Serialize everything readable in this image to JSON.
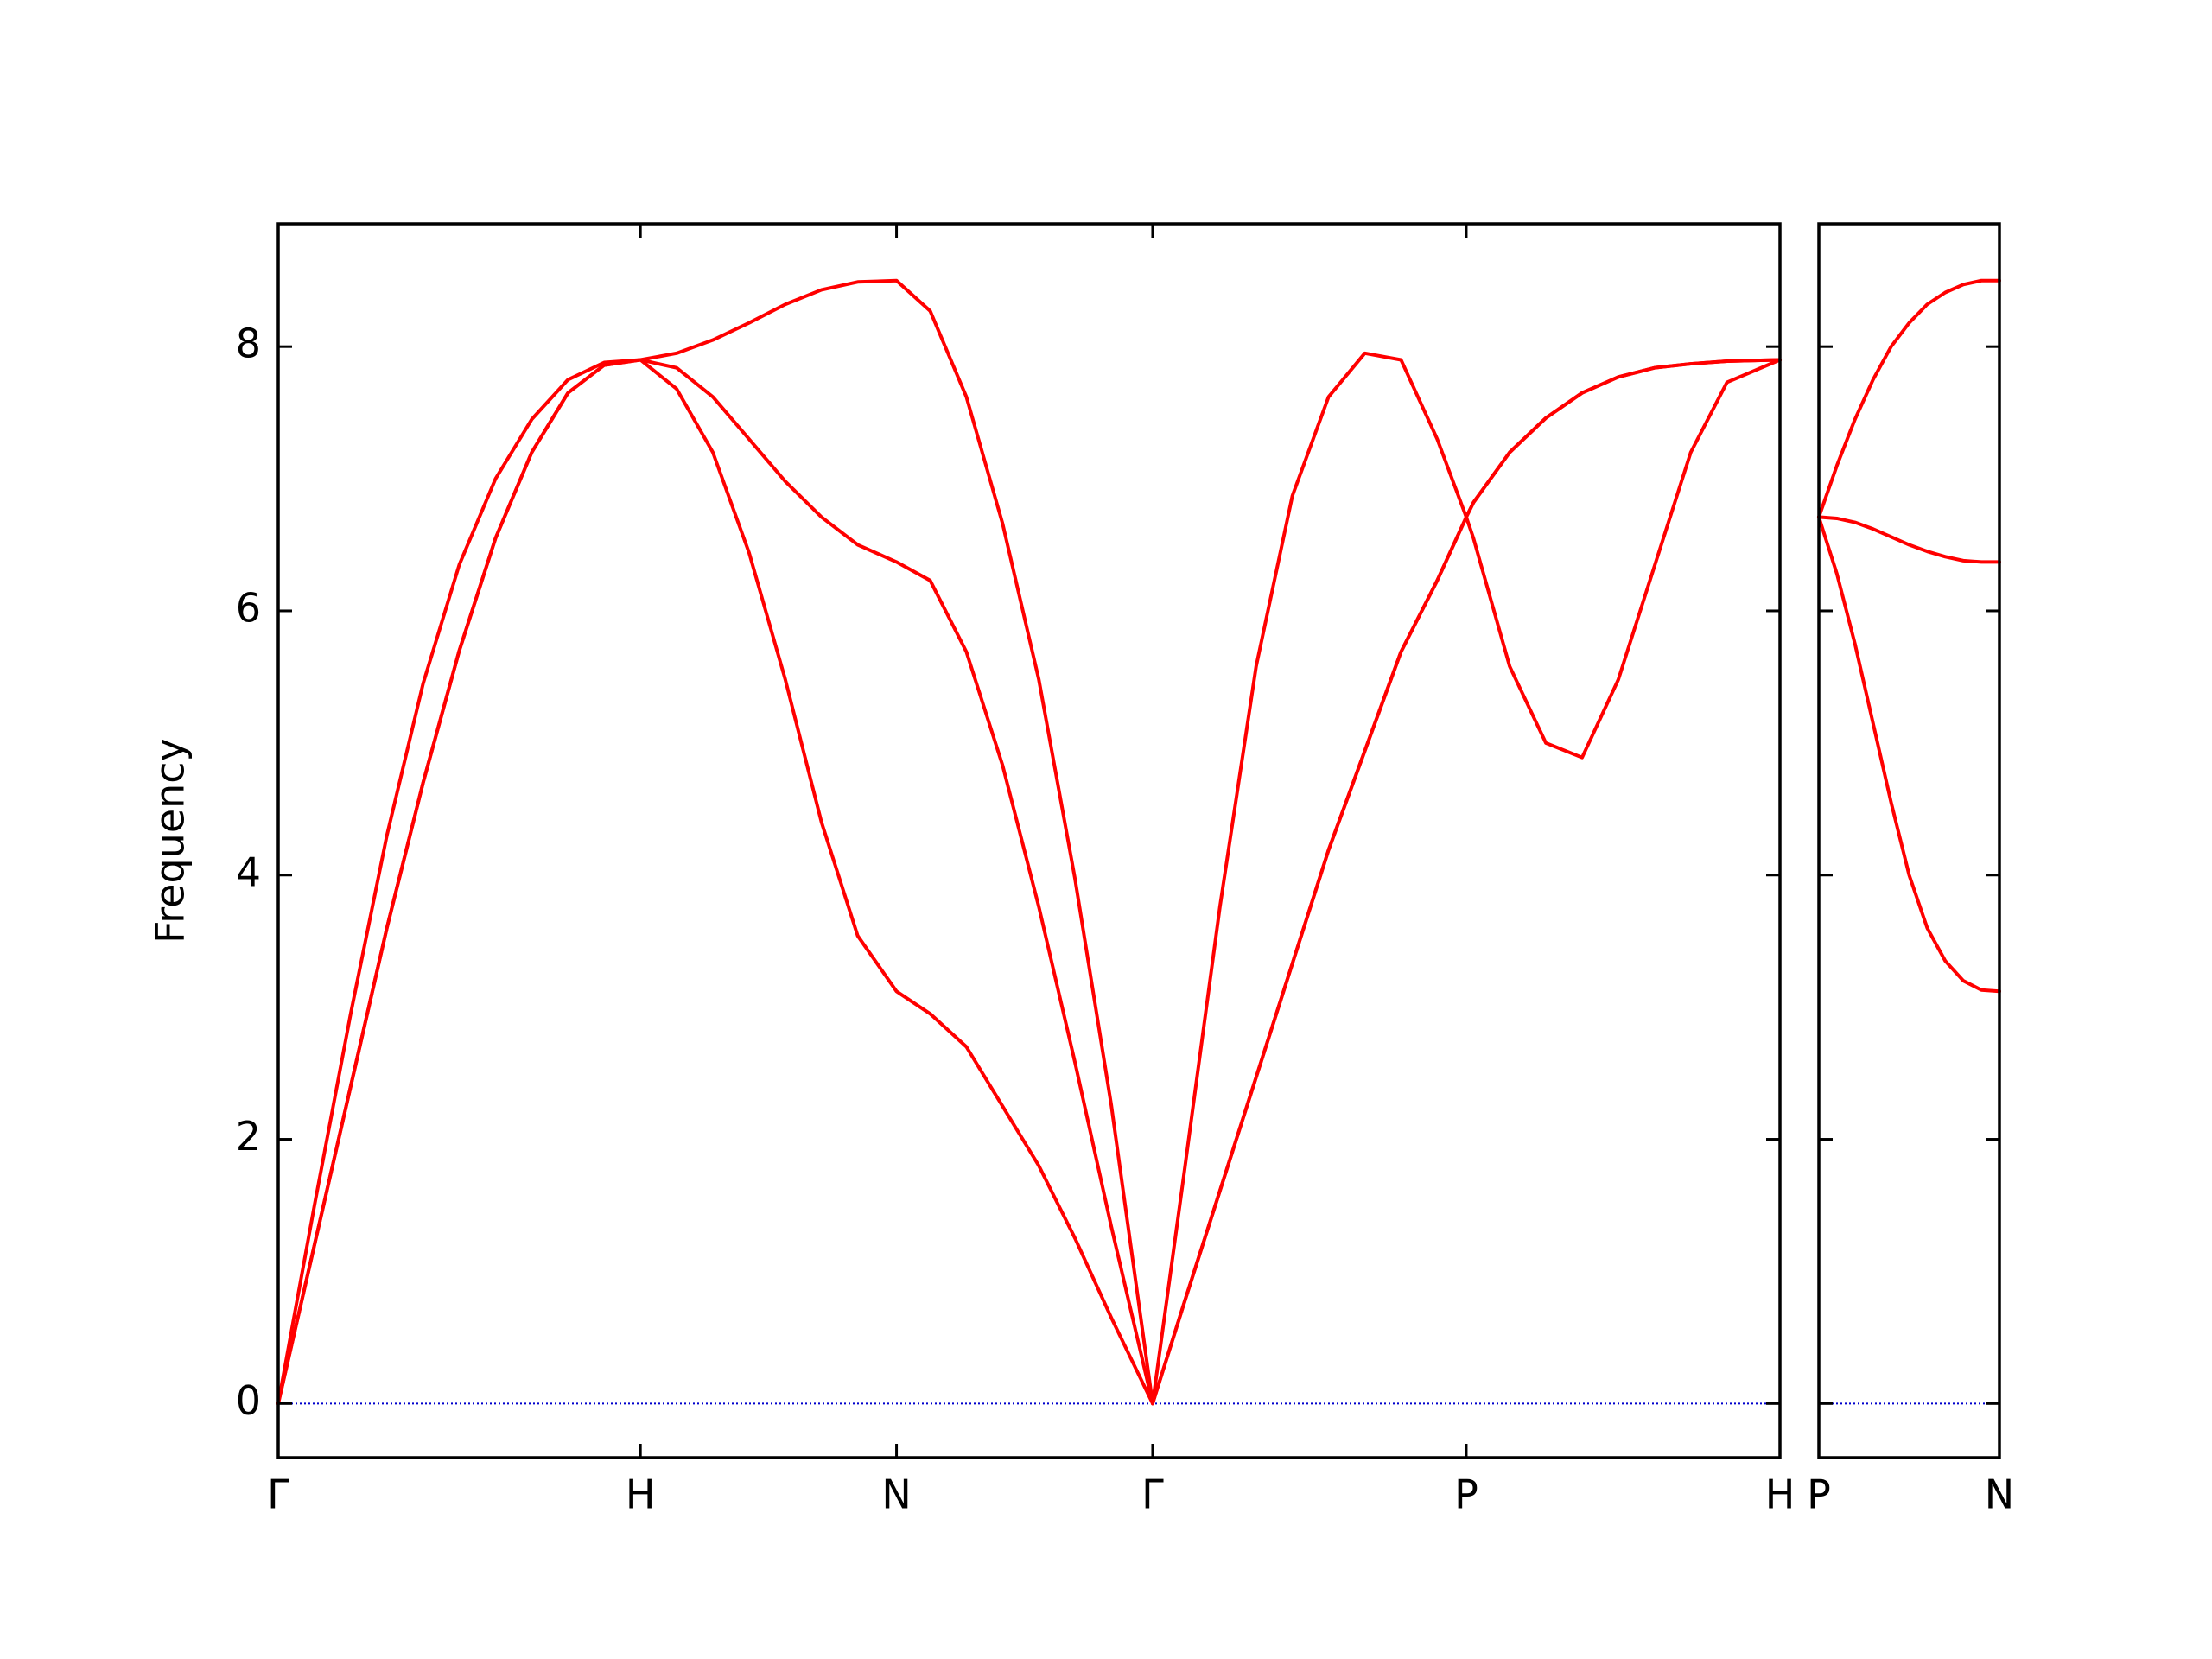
{
  "chart_data": [
    {
      "type": "line",
      "ylabel": "Frequency",
      "x": [
        0,
        0.1,
        0.2,
        0.3,
        0.4,
        0.5,
        0.6,
        0.7,
        0.8,
        0.9,
        1,
        1.1,
        1.2,
        1.3,
        1.4,
        1.5,
        1.6,
        1.7071,
        1.8,
        1.9,
        2.0,
        2.1,
        2.2,
        2.3,
        2.4142,
        2.5,
        2.6,
        2.7,
        2.8,
        2.9,
        3.0,
        3.1,
        3.2,
        3.2802,
        3.3,
        3.4,
        3.5,
        3.6,
        3.7,
        3.8,
        3.9,
        4.0,
        4.1463
      ],
      "series": [
        {
          "color": "#ff0000",
          "values": [
            0,
            1.5,
            2.95,
            4.3,
            5.45,
            6.35,
            7.0,
            7.45,
            7.75,
            7.88,
            7.9,
            7.95,
            8.05,
            8.18,
            8.32,
            8.43,
            8.49,
            8.5,
            8.27,
            7.62,
            6.66,
            5.48,
            3.97,
            2.26,
            0,
            1.72,
            3.76,
            5.58,
            6.87,
            7.62,
            7.95,
            7.9,
            7.3,
            6.71,
            6.55,
            5.58,
            5.0,
            4.89,
            5.48,
            6.34,
            7.2,
            7.73,
            7.9
          ]
        },
        {
          "color": "#ff0000",
          "values": [
            0,
            1.2,
            2.4,
            3.6,
            4.7,
            5.7,
            6.55,
            7.2,
            7.65,
            7.86,
            7.9,
            7.84,
            7.62,
            7.3,
            6.98,
            6.71,
            6.5,
            6.37,
            6.23,
            5.69,
            4.83,
            3.76,
            2.58,
            1.34,
            0,
            0.75,
            1.61,
            2.47,
            3.33,
            4.19,
            4.94,
            5.69,
            6.23,
            6.71,
            6.82,
            7.2,
            7.46,
            7.65,
            7.77,
            7.84,
            7.87,
            7.89,
            7.9
          ]
        },
        {
          "color": "#ff0000",
          "values": [
            0,
            1.2,
            2.4,
            3.6,
            4.7,
            5.7,
            6.55,
            7.2,
            7.65,
            7.86,
            7.9,
            7.68,
            7.2,
            6.44,
            5.48,
            4.4,
            3.54,
            3.12,
            2.95,
            2.7,
            2.25,
            1.8,
            1.25,
            0.65,
            0,
            0.75,
            1.61,
            2.47,
            3.33,
            4.19,
            4.94,
            5.69,
            6.23,
            6.71,
            6.82,
            7.2,
            7.46,
            7.65,
            7.77,
            7.84,
            7.87,
            7.89,
            7.9
          ]
        }
      ],
      "xlim": [
        0,
        4.1463
      ],
      "xticks": [
        {
          "value": 0,
          "label": "Γ"
        },
        {
          "value": 1,
          "label": "H"
        },
        {
          "value": 1.7071,
          "label": "N"
        },
        {
          "value": 2.4142,
          "label": "Γ"
        },
        {
          "value": 3.2802,
          "label": "P"
        },
        {
          "value": 4.1463,
          "label": "H"
        }
      ],
      "ylim": [
        -0.41,
        8.93
      ],
      "yticks": [
        0,
        2,
        4,
        6,
        8
      ],
      "show_ytick_labels": true,
      "hline": {
        "y": 0,
        "color": "#0000cc"
      }
    },
    {
      "type": "line",
      "x": [
        0,
        0.05,
        0.1,
        0.15,
        0.2,
        0.25,
        0.3,
        0.35,
        0.4,
        0.45,
        0.5
      ],
      "series": [
        {
          "color": "#ff0000",
          "values": [
            6.71,
            7.1,
            7.45,
            7.75,
            8.0,
            8.18,
            8.32,
            8.41,
            8.47,
            8.5,
            8.5
          ]
        },
        {
          "color": "#ff0000",
          "values": [
            6.71,
            6.7,
            6.67,
            6.62,
            6.56,
            6.5,
            6.45,
            6.41,
            6.38,
            6.37,
            6.37
          ]
        },
        {
          "color": "#ff0000",
          "values": [
            6.71,
            6.28,
            5.75,
            5.15,
            4.55,
            4.0,
            3.6,
            3.35,
            3.2,
            3.13,
            3.12
          ]
        }
      ],
      "xlim": [
        0,
        0.5
      ],
      "xticks": [
        {
          "value": 0,
          "label": "P"
        },
        {
          "value": 0.5,
          "label": "N"
        }
      ],
      "ylim": [
        -0.41,
        8.93
      ],
      "yticks": [
        0,
        2,
        4,
        6,
        8
      ],
      "show_ytick_labels": false,
      "hline": {
        "y": 0,
        "color": "#0000cc"
      }
    }
  ]
}
